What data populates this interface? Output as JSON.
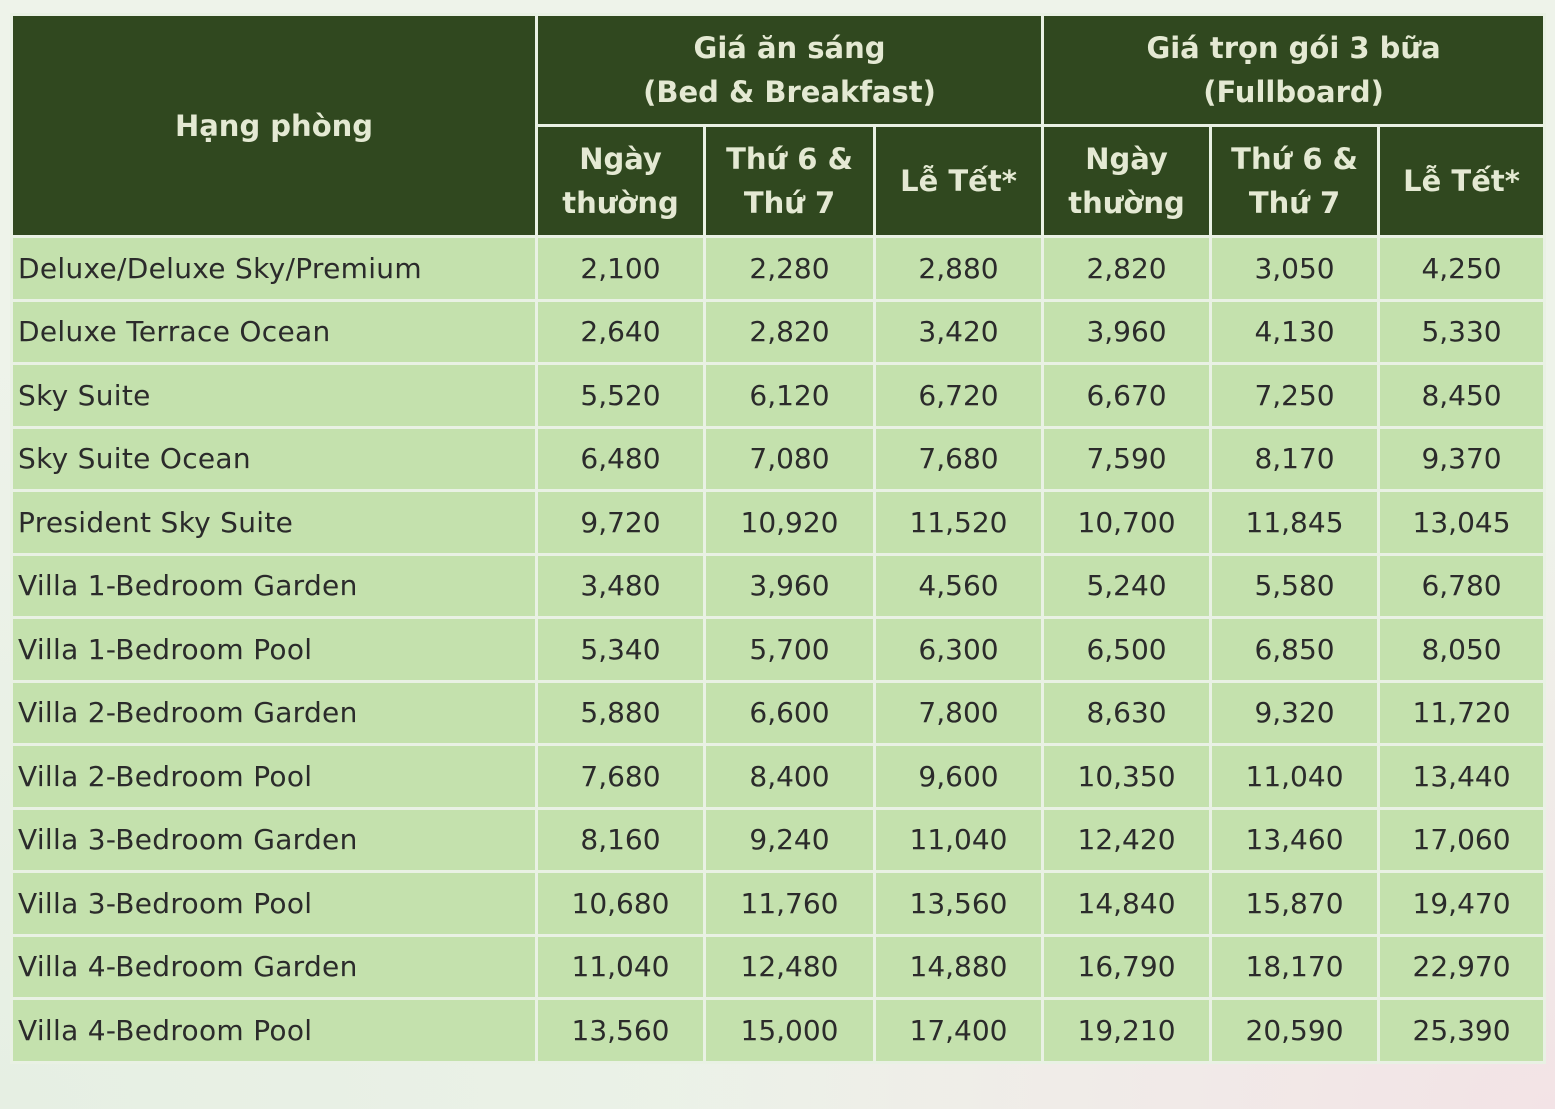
{
  "header": {
    "room_label": "Hạng phòng",
    "groups": [
      {
        "line1": "Giá ăn sáng",
        "line2": "(Bed & Breakfast)"
      },
      {
        "line1": "Giá trọn gói 3 bữa",
        "line2": "(Fullboard)"
      }
    ],
    "subcols": [
      {
        "line1": "Ngày",
        "line2": "thường"
      },
      {
        "line1": "Thứ 6 &",
        "line2": "Thứ 7"
      },
      {
        "line1": "Lễ Tết*",
        "line2": ""
      },
      {
        "line1": "Ngày",
        "line2": "thường"
      },
      {
        "line1": "Thứ 6 &",
        "line2": "Thứ 7"
      },
      {
        "line1": "Lễ Tết*",
        "line2": ""
      }
    ]
  },
  "rows": [
    {
      "room": "Deluxe/Deluxe Sky/Premium",
      "values": [
        "2,100",
        "2,280",
        "2,880",
        "2,820",
        "3,050",
        "4,250"
      ]
    },
    {
      "room": "Deluxe Terrace Ocean",
      "values": [
        "2,640",
        "2,820",
        "3,420",
        "3,960",
        "4,130",
        "5,330"
      ]
    },
    {
      "room": "Sky Suite",
      "values": [
        "5,520",
        "6,120",
        "6,720",
        "6,670",
        "7,250",
        "8,450"
      ]
    },
    {
      "room": "Sky Suite Ocean",
      "values": [
        "6,480",
        "7,080",
        "7,680",
        "7,590",
        "8,170",
        "9,370"
      ]
    },
    {
      "room": "President Sky Suite",
      "values": [
        "9,720",
        "10,920",
        "11,520",
        "10,700",
        "11,845",
        "13,045"
      ]
    },
    {
      "room": "Villa 1-Bedroom Garden",
      "values": [
        "3,480",
        "3,960",
        "4,560",
        "5,240",
        "5,580",
        "6,780"
      ]
    },
    {
      "room": "Villa 1-Bedroom Pool",
      "values": [
        "5,340",
        "5,700",
        "6,300",
        "6,500",
        "6,850",
        "8,050"
      ]
    },
    {
      "room": "Villa 2-Bedroom Garden",
      "values": [
        "5,880",
        "6,600",
        "7,800",
        "8,630",
        "9,320",
        "11,720"
      ]
    },
    {
      "room": "Villa 2-Bedroom Pool",
      "values": [
        "7,680",
        "8,400",
        "9,600",
        "10,350",
        "11,040",
        "13,440"
      ]
    },
    {
      "room": "Villa 3-Bedroom Garden",
      "values": [
        "8,160",
        "9,240",
        "11,040",
        "12,420",
        "13,460",
        "17,060"
      ]
    },
    {
      "room": "Villa 3-Bedroom Pool",
      "values": [
        "10,680",
        "11,760",
        "13,560",
        "14,840",
        "15,870",
        "19,470"
      ]
    },
    {
      "room": "Villa 4-Bedroom Garden",
      "values": [
        "11,040",
        "12,480",
        "14,880",
        "16,790",
        "18,170",
        "22,970"
      ]
    },
    {
      "room": "Villa 4-Bedroom Pool",
      "values": [
        "13,560",
        "15,000",
        "17,400",
        "19,210",
        "20,590",
        "25,390"
      ]
    }
  ],
  "colors": {
    "header_bg": "#30481f",
    "header_text": "#e4e9d3",
    "row_bg": "#c4e1ad",
    "grid_line": "#e9f1e4"
  }
}
